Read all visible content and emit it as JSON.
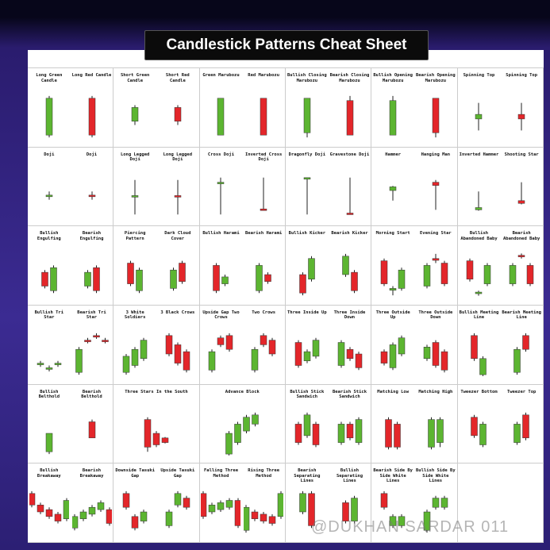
{
  "header": {
    "title": "Candlestick Patterns Cheat Sheet"
  },
  "cells": [
    [
      [
        "Long Green Candle",
        "Long Red Candle"
      ],
      [
        "Short Green Candle",
        "Short Red Candle"
      ],
      [
        "Green Marubozu",
        "Red Marubozu"
      ],
      [
        "Bullish Closing Marubozu",
        "Bearish Closing Marubozu"
      ],
      [
        "Bullish Opening Marubozu",
        "Bearish Opening Marubozu"
      ],
      [
        "Spinning Top",
        "Spinning Top"
      ]
    ],
    [
      [
        "Doji",
        "Doji"
      ],
      [
        "Long Legged Doji",
        "Long Legged Doji"
      ],
      [
        "Cross Doji",
        "Inverted Cross Doji"
      ],
      [
        "Dragonfly Doji",
        "Gravestone Doji"
      ],
      [
        "Hammer",
        "Hanging Man"
      ],
      [
        "Inverted Hammer",
        "Shooting Star"
      ]
    ],
    [
      [
        "Bullish Engulfing",
        "Bearish Engulfing"
      ],
      [
        "Piercing Pattern",
        "Dark Cloud Cover"
      ],
      [
        "Bullish Harami",
        "Bearish Harami"
      ],
      [
        "Bullish Kicker",
        "Bearish Kicker"
      ],
      [
        "Morning Start",
        "Evening Star"
      ],
      [
        "Bullish Abandoned Baby",
        "Bearish Abandoned Baby"
      ]
    ],
    [
      [
        "Bullish Tri Star",
        "Bearish Tri Star"
      ],
      [
        "3 White Soldiers",
        "3 Black Crows"
      ],
      [
        "Upside Gap Two Crows",
        "Two Crows"
      ],
      [
        "Three Inside Up",
        "Three Inside Down"
      ],
      [
        "Three Outside Up",
        "Three Outside Down"
      ],
      [
        "Bullish Meeting Line",
        "Bearish Meeting Line"
      ]
    ],
    [
      [
        "Bullish Belthold",
        "Bearish Belthold"
      ],
      [
        "Three Stars In the South"
      ],
      [
        "Advance Block"
      ],
      [
        "Bullish Stick Sandwich",
        "Bearish Stick Sandwich"
      ],
      [
        "Matching Low",
        "Matching High"
      ],
      [
        "Tweezer Bottom",
        "Tweezer Top"
      ]
    ],
    [
      [
        "Bullish Breakaway",
        "Bearish Breakaway"
      ],
      [
        "Downside Tasuki Gap",
        "Upside Tasuki Gap"
      ],
      [
        "Falling Three Method",
        "Rising Three Method"
      ],
      [
        "Bearish Separating Lines",
        "Bullish Separating Lines"
      ],
      [
        "Bearish Side By Side White Lines",
        "Bullish Side By Side White Lines"
      ],
      []
    ]
  ],
  "watermark": "@DUKHAN SARDAR 011"
}
